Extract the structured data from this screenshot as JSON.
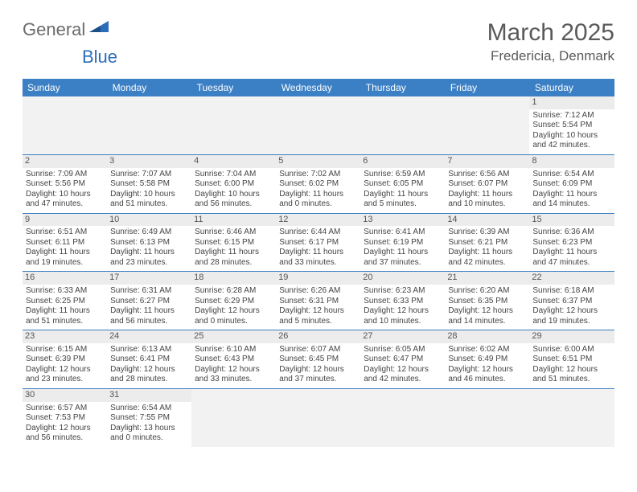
{
  "logo": {
    "part1": "General",
    "part2": "Blue"
  },
  "title": "March 2025",
  "location": "Fredericia, Denmark",
  "colors": {
    "header_bg": "#3b7fc4",
    "header_text": "#ffffff",
    "border": "#3b7fc4",
    "blank_bg": "#f2f2f2",
    "daynum_bg": "#ececec",
    "text": "#444444",
    "logo_gray": "#6b6b6b",
    "logo_blue": "#2a6ebb"
  },
  "weekdays": [
    "Sunday",
    "Monday",
    "Tuesday",
    "Wednesday",
    "Thursday",
    "Friday",
    "Saturday"
  ],
  "weeks": [
    [
      null,
      null,
      null,
      null,
      null,
      null,
      {
        "d": "1",
        "sr": "7:12 AM",
        "ss": "5:54 PM",
        "dl": "10 hours and 42 minutes."
      }
    ],
    [
      {
        "d": "2",
        "sr": "7:09 AM",
        "ss": "5:56 PM",
        "dl": "10 hours and 47 minutes."
      },
      {
        "d": "3",
        "sr": "7:07 AM",
        "ss": "5:58 PM",
        "dl": "10 hours and 51 minutes."
      },
      {
        "d": "4",
        "sr": "7:04 AM",
        "ss": "6:00 PM",
        "dl": "10 hours and 56 minutes."
      },
      {
        "d": "5",
        "sr": "7:02 AM",
        "ss": "6:02 PM",
        "dl": "11 hours and 0 minutes."
      },
      {
        "d": "6",
        "sr": "6:59 AM",
        "ss": "6:05 PM",
        "dl": "11 hours and 5 minutes."
      },
      {
        "d": "7",
        "sr": "6:56 AM",
        "ss": "6:07 PM",
        "dl": "11 hours and 10 minutes."
      },
      {
        "d": "8",
        "sr": "6:54 AM",
        "ss": "6:09 PM",
        "dl": "11 hours and 14 minutes."
      }
    ],
    [
      {
        "d": "9",
        "sr": "6:51 AM",
        "ss": "6:11 PM",
        "dl": "11 hours and 19 minutes."
      },
      {
        "d": "10",
        "sr": "6:49 AM",
        "ss": "6:13 PM",
        "dl": "11 hours and 23 minutes."
      },
      {
        "d": "11",
        "sr": "6:46 AM",
        "ss": "6:15 PM",
        "dl": "11 hours and 28 minutes."
      },
      {
        "d": "12",
        "sr": "6:44 AM",
        "ss": "6:17 PM",
        "dl": "11 hours and 33 minutes."
      },
      {
        "d": "13",
        "sr": "6:41 AM",
        "ss": "6:19 PM",
        "dl": "11 hours and 37 minutes."
      },
      {
        "d": "14",
        "sr": "6:39 AM",
        "ss": "6:21 PM",
        "dl": "11 hours and 42 minutes."
      },
      {
        "d": "15",
        "sr": "6:36 AM",
        "ss": "6:23 PM",
        "dl": "11 hours and 47 minutes."
      }
    ],
    [
      {
        "d": "16",
        "sr": "6:33 AM",
        "ss": "6:25 PM",
        "dl": "11 hours and 51 minutes."
      },
      {
        "d": "17",
        "sr": "6:31 AM",
        "ss": "6:27 PM",
        "dl": "11 hours and 56 minutes."
      },
      {
        "d": "18",
        "sr": "6:28 AM",
        "ss": "6:29 PM",
        "dl": "12 hours and 0 minutes."
      },
      {
        "d": "19",
        "sr": "6:26 AM",
        "ss": "6:31 PM",
        "dl": "12 hours and 5 minutes."
      },
      {
        "d": "20",
        "sr": "6:23 AM",
        "ss": "6:33 PM",
        "dl": "12 hours and 10 minutes."
      },
      {
        "d": "21",
        "sr": "6:20 AM",
        "ss": "6:35 PM",
        "dl": "12 hours and 14 minutes."
      },
      {
        "d": "22",
        "sr": "6:18 AM",
        "ss": "6:37 PM",
        "dl": "12 hours and 19 minutes."
      }
    ],
    [
      {
        "d": "23",
        "sr": "6:15 AM",
        "ss": "6:39 PM",
        "dl": "12 hours and 23 minutes."
      },
      {
        "d": "24",
        "sr": "6:13 AM",
        "ss": "6:41 PM",
        "dl": "12 hours and 28 minutes."
      },
      {
        "d": "25",
        "sr": "6:10 AM",
        "ss": "6:43 PM",
        "dl": "12 hours and 33 minutes."
      },
      {
        "d": "26",
        "sr": "6:07 AM",
        "ss": "6:45 PM",
        "dl": "12 hours and 37 minutes."
      },
      {
        "d": "27",
        "sr": "6:05 AM",
        "ss": "6:47 PM",
        "dl": "12 hours and 42 minutes."
      },
      {
        "d": "28",
        "sr": "6:02 AM",
        "ss": "6:49 PM",
        "dl": "12 hours and 46 minutes."
      },
      {
        "d": "29",
        "sr": "6:00 AM",
        "ss": "6:51 PM",
        "dl": "12 hours and 51 minutes."
      }
    ],
    [
      {
        "d": "30",
        "sr": "6:57 AM",
        "ss": "7:53 PM",
        "dl": "12 hours and 56 minutes."
      },
      {
        "d": "31",
        "sr": "6:54 AM",
        "ss": "7:55 PM",
        "dl": "13 hours and 0 minutes."
      },
      null,
      null,
      null,
      null,
      null
    ]
  ],
  "labels": {
    "sunrise": "Sunrise: ",
    "sunset": "Sunset: ",
    "daylight": "Daylight: "
  }
}
